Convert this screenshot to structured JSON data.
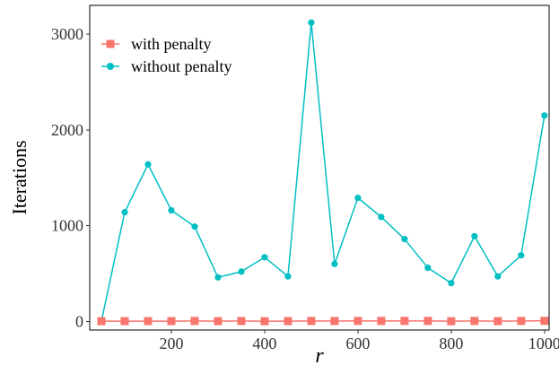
{
  "chart_data": {
    "type": "line",
    "title": "",
    "xlabel": "r",
    "ylabel": "Iterations",
    "xlim": [
      25,
      1010
    ],
    "ylim": [
      -90,
      3300
    ],
    "xticks": [
      200,
      400,
      600,
      800,
      1000
    ],
    "xtick_labels": [
      "200",
      "400",
      "600",
      "800",
      "1000"
    ],
    "yticks": [
      0,
      1000,
      2000,
      3000
    ],
    "ytick_labels": [
      "0",
      "1000",
      "2000",
      "3000"
    ],
    "grid": false,
    "legend_position": "top-left",
    "series": [
      {
        "name": "with penalty",
        "color": "#F8766D",
        "marker": "square",
        "x": [
          50,
          100,
          150,
          200,
          250,
          300,
          350,
          400,
          450,
          500,
          550,
          600,
          650,
          700,
          750,
          800,
          850,
          900,
          950,
          1000
        ],
        "y": [
          2,
          3,
          3,
          3,
          5,
          3,
          4,
          2,
          3,
          5,
          4,
          5,
          5,
          5,
          5,
          2,
          5,
          3,
          5,
          6
        ]
      },
      {
        "name": "without penalty",
        "color": "#00BFC4",
        "marker": "circle",
        "x": [
          50,
          100,
          150,
          200,
          250,
          300,
          350,
          400,
          450,
          500,
          550,
          600,
          650,
          700,
          750,
          800,
          850,
          900,
          950,
          1000
        ],
        "y": [
          0,
          1140,
          1640,
          1160,
          990,
          460,
          520,
          670,
          470,
          3120,
          600,
          1290,
          1090,
          860,
          560,
          400,
          890,
          470,
          690,
          2150
        ]
      }
    ]
  }
}
